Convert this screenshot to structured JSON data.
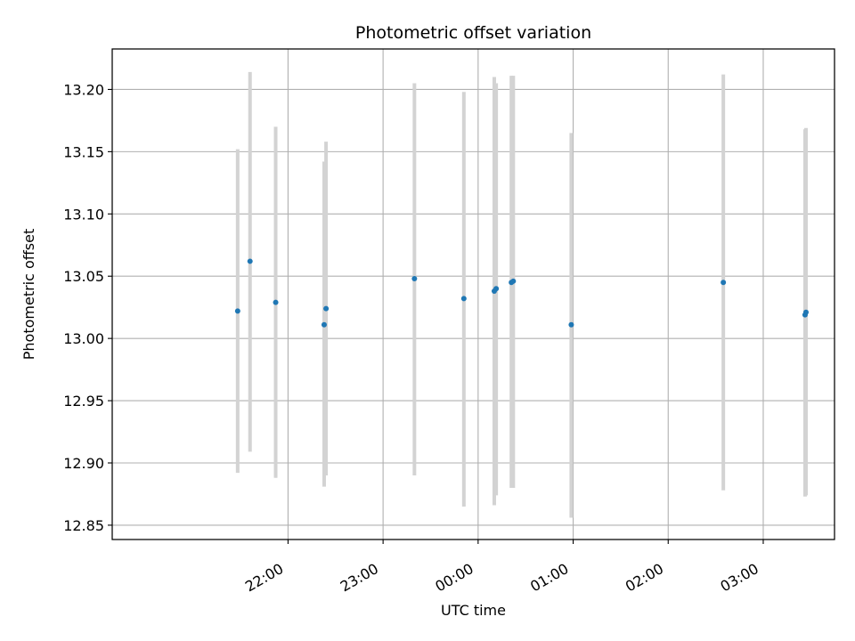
{
  "chart_data": {
    "type": "scatter",
    "title": "Photometric offset variation",
    "xlabel": "UTC time",
    "ylabel": "Photometric offset",
    "grid": true,
    "x_unit": "hours since 21:00 UTC",
    "xlim": [
      -0.85,
      6.75
    ],
    "ylim": [
      12.8385,
      13.2325
    ],
    "x_ticks": [
      {
        "value": 1,
        "label": "22:00"
      },
      {
        "value": 2,
        "label": "23:00"
      },
      {
        "value": 3,
        "label": "00:00"
      },
      {
        "value": 4,
        "label": "01:00"
      },
      {
        "value": 5,
        "label": "02:00"
      },
      {
        "value": 6,
        "label": "03:00"
      }
    ],
    "y_ticks": [
      {
        "value": 12.85,
        "label": "12.85"
      },
      {
        "value": 12.9,
        "label": "12.90"
      },
      {
        "value": 12.95,
        "label": "12.95"
      },
      {
        "value": 13.0,
        "label": "13.00"
      },
      {
        "value": 13.05,
        "label": "13.05"
      },
      {
        "value": 13.1,
        "label": "13.10"
      },
      {
        "value": 13.15,
        "label": "13.15"
      },
      {
        "value": 13.2,
        "label": "13.20"
      }
    ],
    "series": [
      {
        "name": "offset",
        "marker_color": "#1f77b4",
        "errorbar_color": "#d3d3d3",
        "points": [
          {
            "x": 0.47,
            "y": 13.022,
            "ylow": 12.892,
            "yhigh": 13.152
          },
          {
            "x": 0.6,
            "y": 13.062,
            "ylow": 12.909,
            "yhigh": 13.214
          },
          {
            "x": 0.87,
            "y": 13.029,
            "ylow": 12.888,
            "yhigh": 13.17
          },
          {
            "x": 1.38,
            "y": 13.011,
            "ylow": 12.881,
            "yhigh": 13.142
          },
          {
            "x": 1.4,
            "y": 13.024,
            "ylow": 12.89,
            "yhigh": 13.158
          },
          {
            "x": 2.33,
            "y": 13.048,
            "ylow": 12.89,
            "yhigh": 13.205
          },
          {
            "x": 2.85,
            "y": 13.032,
            "ylow": 12.865,
            "yhigh": 13.198
          },
          {
            "x": 3.17,
            "y": 13.038,
            "ylow": 12.866,
            "yhigh": 13.21
          },
          {
            "x": 3.19,
            "y": 13.04,
            "ylow": 12.874,
            "yhigh": 13.205
          },
          {
            "x": 3.35,
            "y": 13.045,
            "ylow": 12.88,
            "yhigh": 13.211
          },
          {
            "x": 3.37,
            "y": 13.046,
            "ylow": 12.88,
            "yhigh": 13.211
          },
          {
            "x": 3.98,
            "y": 13.011,
            "ylow": 12.856,
            "yhigh": 13.165
          },
          {
            "x": 5.58,
            "y": 13.045,
            "ylow": 12.878,
            "yhigh": 13.212
          },
          {
            "x": 6.44,
            "y": 13.019,
            "ylow": 12.873,
            "yhigh": 13.168
          },
          {
            "x": 6.45,
            "y": 13.021,
            "ylow": 12.874,
            "yhigh": 13.169
          }
        ]
      }
    ]
  }
}
